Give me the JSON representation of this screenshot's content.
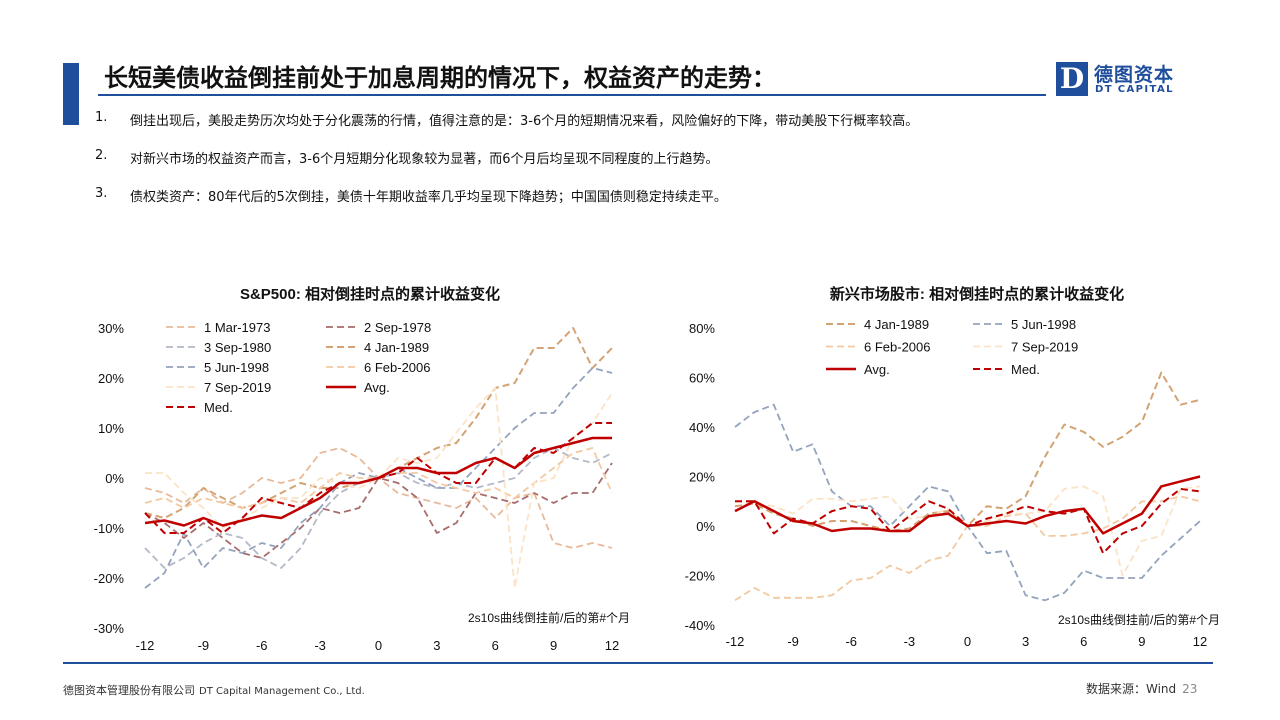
{
  "header": {
    "title": "长短美债收益倒挂前处于加息周期的情况下，权益资产的走势：",
    "logo_mark": "D",
    "logo_cn": "德图资本",
    "logo_en": "DT CAPITAL"
  },
  "bullets": [
    {
      "num": "1.",
      "text": "倒挂出现后，美股走势历次均处于分化震荡的行情，值得注意的是：3-6个月的短期情况来看，风险偏好的下降，带动美股下行概率较高。"
    },
    {
      "num": "2.",
      "text": "对新兴市场的权益资产而言，3-6个月短期分化现象较为显著，而6个月后均呈现不同程度的上行趋势。"
    },
    {
      "num": "3.",
      "text": "债权类资产：80年代后的5次倒挂，美债十年期收益率几乎均呈现下降趋势；中国国债则稳定持续走平。"
    }
  ],
  "footer": {
    "company_cn": "德图资本管理股份有限公司",
    "company_en": "DT Capital Management Co., Ltd.",
    "source": "数据来源：Wind",
    "page": "23"
  },
  "chart_data": [
    {
      "type": "line",
      "title": "S&P500: 相对倒挂时点的累计收益变化",
      "xlabel": "2s10s曲线倒挂前/后的第#个月",
      "ylabel": "",
      "x": [
        -12,
        -11,
        -10,
        -9,
        -8,
        -7,
        -6,
        -5,
        -4,
        -3,
        -2,
        -1,
        0,
        1,
        2,
        3,
        4,
        5,
        6,
        7,
        8,
        9,
        10,
        11,
        12
      ],
      "xticks": [
        -12,
        -9,
        -6,
        -3,
        0,
        3,
        6,
        9,
        12
      ],
      "xtick_labels": [
        "-12",
        "-9",
        "-6",
        "-3",
        "0",
        "3",
        "6",
        "9",
        "12"
      ],
      "ylim": [
        -30,
        30
      ],
      "yticks": [
        -30,
        -20,
        -10,
        0,
        10,
        20,
        30
      ],
      "ytick_labels": [
        "-30%",
        "-20%",
        "-10%",
        "0%",
        "10%",
        "20%",
        "30%"
      ],
      "legend_position": "top-left",
      "series": [
        {
          "name": "1 Mar-1973",
          "color": "#e8b99a",
          "dash": "dash",
          "width": 1.8,
          "values": [
            -2,
            -3,
            -5,
            -2,
            -5,
            -3,
            0,
            -1,
            0,
            5,
            6,
            4,
            0,
            -3,
            -4,
            -5,
            -6,
            -4,
            -8,
            -4,
            -3,
            -13,
            -14,
            -13,
            -14
          ]
        },
        {
          "name": "2 Sep-1978",
          "color": "#a86b6b",
          "dash": "dash",
          "width": 1.8,
          "values": [
            -7,
            -9,
            -12,
            -9,
            -12,
            -15,
            -16,
            -13,
            -10,
            -6,
            -7,
            -6,
            0,
            -1,
            -4,
            -11,
            -9,
            -3,
            -4,
            -5,
            -3,
            -5,
            -3,
            -3,
            3
          ]
        },
        {
          "name": "3 Sep-1980",
          "color": "#b3b9c6",
          "dash": "dash",
          "width": 1.8,
          "values": [
            -14,
            -18,
            -16,
            -13,
            -11,
            -12,
            -16,
            -18,
            -14,
            -7,
            -3,
            -1,
            0,
            1,
            -1,
            -2,
            -1,
            -2,
            -1,
            0,
            4,
            6,
            4,
            3,
            5
          ]
        },
        {
          "name": "4 Jan-1989",
          "color": "#d4a373",
          "dash": "dash",
          "width": 2.0,
          "values": [
            -7,
            -8,
            -6,
            -2,
            -4,
            -6,
            -5,
            -3,
            -1,
            -2,
            -2,
            -1,
            0,
            2,
            4,
            6,
            7,
            12,
            18,
            19,
            26,
            26,
            30,
            22,
            26
          ]
        },
        {
          "name": "5 Jun-1998",
          "color": "#94a3bd",
          "dash": "dash",
          "width": 1.8,
          "values": [
            -22,
            -19,
            -11,
            -18,
            -14,
            -15,
            -13,
            -14,
            -9,
            -6,
            -1,
            1,
            0,
            2,
            0,
            -2,
            -2,
            2,
            6,
            10,
            13,
            13,
            18,
            22,
            21
          ]
        },
        {
          "name": "6 Feb-2006",
          "color": "#f2c9a0",
          "dash": "dash",
          "width": 1.8,
          "values": [
            -5,
            -4,
            -6,
            -4,
            -5,
            -6,
            -5,
            -4,
            -5,
            -2,
            1,
            0,
            0,
            1,
            1,
            -1,
            -2,
            -3,
            -2,
            -4,
            -1,
            2,
            5,
            6,
            -3
          ]
        },
        {
          "name": "7 Sep-2019",
          "color": "#fbe3c6",
          "dash": "dash",
          "width": 1.8,
          "values": [
            1,
            1,
            -3,
            -6,
            -10,
            -8,
            -6,
            -4,
            -4,
            0,
            -1,
            -2,
            0,
            4,
            3,
            4,
            9,
            14,
            18,
            -22,
            -1,
            0,
            8,
            11,
            17
          ]
        },
        {
          "name": "Avg.",
          "color": "#c00000",
          "dash": "solid",
          "width": 2.5,
          "values": [
            -9,
            -8.5,
            -9.5,
            -8,
            -9.5,
            -8.5,
            -7.5,
            -8,
            -6,
            -4,
            -1,
            -1,
            0,
            2,
            2,
            1,
            1,
            3,
            4,
            2,
            5,
            6,
            7,
            8,
            8
          ]
        },
        {
          "name": "Med.",
          "color": "#c00000",
          "dash": "dash",
          "width": 2.0,
          "values": [
            -7,
            -11,
            -11,
            -8,
            -11,
            -8,
            -4,
            -5,
            -6,
            -3,
            -1,
            -1,
            0,
            1,
            4,
            1,
            -1,
            -1,
            4,
            2,
            6,
            5,
            8,
            11,
            11
          ]
        }
      ]
    },
    {
      "type": "line",
      "title": "新兴市场股市: 相对倒挂时点的累计收益变化",
      "xlabel": "2s10s曲线倒挂前/后的第#个月",
      "ylabel": "",
      "x": [
        -12,
        -11,
        -10,
        -9,
        -8,
        -7,
        -6,
        -5,
        -4,
        -3,
        -2,
        -1,
        0,
        1,
        2,
        3,
        4,
        5,
        6,
        7,
        8,
        9,
        10,
        11,
        12
      ],
      "xticks": [
        -12,
        -9,
        -6,
        -3,
        0,
        3,
        6,
        9,
        12
      ],
      "xtick_labels": [
        "-12",
        "-9",
        "-6",
        "-3",
        "0",
        "3",
        "6",
        "9",
        "12"
      ],
      "ylim": [
        -40,
        80
      ],
      "yticks": [
        -40,
        -20,
        0,
        20,
        40,
        60,
        80
      ],
      "ytick_labels": [
        "-40%",
        "-20%",
        "0%",
        "20%",
        "40%",
        "60%",
        "80%"
      ],
      "legend_position": "top",
      "series": [
        {
          "name": "4 Jan-1989",
          "color": "#d4a373",
          "dash": "dash",
          "width": 2.0,
          "values": [
            8,
            9,
            5,
            3,
            0,
            2,
            2,
            0,
            -2,
            -1,
            5,
            6,
            0,
            8,
            7,
            12,
            28,
            41,
            38,
            32,
            36,
            42,
            62,
            49,
            51
          ]
        },
        {
          "name": "5 Jun-1998",
          "color": "#94a3bd",
          "dash": "dash",
          "width": 1.8,
          "values": [
            40,
            46,
            49,
            30,
            33,
            14,
            8,
            8,
            0,
            8,
            16,
            14,
            0,
            -11,
            -10,
            -28,
            -30,
            -27,
            -18,
            -21,
            -21,
            -21,
            -12,
            -5,
            2
          ]
        },
        {
          "name": "6 Feb-2006",
          "color": "#f2c9a0",
          "dash": "dash",
          "width": 1.8,
          "values": [
            -30,
            -25,
            -29,
            -29,
            -29,
            -28,
            -22,
            -21,
            -16,
            -19,
            -14,
            -12,
            0,
            0,
            4,
            5,
            -4,
            -4,
            -3,
            -1,
            3,
            10,
            10,
            12,
            10
          ]
        },
        {
          "name": "7 Sep-2019",
          "color": "#fbe3c6",
          "dash": "dash",
          "width": 1.8,
          "values": [
            10,
            9,
            8,
            5,
            11,
            11,
            10,
            11,
            12,
            3,
            4,
            7,
            0,
            2,
            5,
            5,
            6,
            15,
            16,
            12,
            -20,
            -6,
            -4,
            15,
            16
          ]
        },
        {
          "name": "Avg.",
          "color": "#c00000",
          "dash": "solid",
          "width": 2.5,
          "values": [
            6,
            10,
            6,
            2,
            1,
            -2,
            -1,
            -1,
            -2,
            -2,
            4,
            5,
            0,
            1,
            2,
            1,
            4,
            6,
            7,
            -3,
            1,
            5,
            16,
            18,
            20
          ]
        },
        {
          "name": "Med.",
          "color": "#c00000",
          "dash": "dash",
          "width": 2.0,
          "values": [
            10,
            10,
            -3,
            3,
            1,
            6,
            8,
            7,
            -2,
            4,
            10,
            7,
            0,
            3,
            5,
            8,
            6,
            5,
            7,
            -11,
            -3,
            0,
            9,
            15,
            14
          ]
        }
      ]
    }
  ]
}
